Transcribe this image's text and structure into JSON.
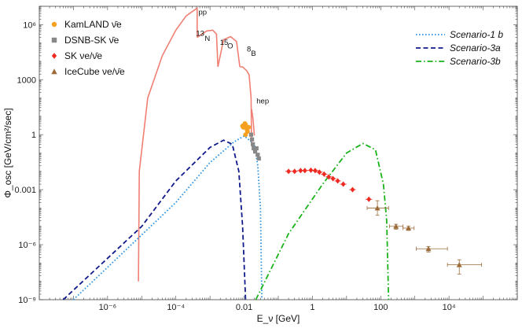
{
  "chart_data": {
    "type": "line",
    "xlabel": "E_ν [GeV]",
    "ylabel": "Φ_osc [GeV/cm²/sec]",
    "x_scale": "log",
    "y_scale": "log",
    "xlim": [
      1e-08,
      1000000.0
    ],
    "ylim": [
      1e-09,
      10000000.0
    ],
    "x_ticks": [
      {
        "value": 1e-06,
        "label": "10⁻⁶"
      },
      {
        "value": 0.0001,
        "label": "10⁻⁴"
      },
      {
        "value": 0.01,
        "label": "0.01"
      },
      {
        "value": 1,
        "label": "1"
      },
      {
        "value": 100,
        "label": "100"
      },
      {
        "value": 10000.0,
        "label": "10⁴"
      }
    ],
    "y_ticks": [
      {
        "value": 1e-09,
        "label": "10⁻⁹"
      },
      {
        "value": 1e-06,
        "label": "10⁻⁶"
      },
      {
        "value": 0.001,
        "label": "0.001"
      },
      {
        "value": 1,
        "label": "1"
      },
      {
        "value": 1000,
        "label": "1000"
      },
      {
        "value": 1000000.0,
        "label": "10⁶"
      }
    ],
    "solar_bands": [
      {
        "label": "pp",
        "color": "#f07f73",
        "points": [
          [
            8e-06,
            1e-08
          ],
          [
            8.5e-06,
            0.01
          ],
          [
            1.5e-05,
            100
          ],
          [
            4e-05,
            20000
          ],
          [
            0.0001,
            500000
          ],
          [
            0.0002,
            3000000
          ],
          [
            0.00042,
            8000000
          ],
          [
            0.00042,
            200000
          ]
        ]
      },
      {
        "label": "¹³N",
        "color": "#f07f73",
        "points": [
          [
            0.00042,
            200000
          ],
          [
            0.0008,
            450000
          ],
          [
            0.0012,
            500000
          ],
          [
            0.00155,
            300000
          ],
          [
            0.0017,
            5000
          ]
        ]
      },
      {
        "label": "¹⁵O",
        "color": "#f07f73",
        "points": [
          [
            0.0017,
            5000
          ],
          [
            0.0025,
            150000
          ],
          [
            0.004,
            220000
          ],
          [
            0.006,
            120000
          ],
          [
            0.0075,
            5000
          ]
        ]
      },
      {
        "label": "⁸B",
        "color": "#f07f73",
        "points": [
          [
            0.0075,
            5000
          ],
          [
            0.009,
            5000
          ],
          [
            0.012,
            3000
          ],
          [
            0.014,
            1800
          ],
          [
            0.016,
            100
          ],
          [
            0.0165,
            0.3
          ]
        ]
      },
      {
        "label": "hep",
        "color": "#f07f73",
        "points": [
          [
            0.0165,
            25
          ],
          [
            0.018,
            8
          ],
          [
            0.02,
            0.9
          ]
        ]
      }
    ],
    "series": [
      {
        "name": "Scenario-1 b",
        "color": "#2b93e3",
        "dash": "dotted",
        "points": [
          [
            1e-07,
            1e-09
          ],
          [
            0.0001,
            0.0002
          ],
          [
            0.001,
            0.03
          ],
          [
            0.005,
            0.4
          ],
          [
            0.01,
            0.85
          ],
          [
            0.02,
            0.3
          ],
          [
            0.025,
            0.02
          ],
          [
            0.03,
            0.0001
          ],
          [
            0.033,
            1e-09
          ]
        ]
      },
      {
        "name": "Scenario-3a",
        "color": "#101a8a",
        "dash": "dashed",
        "points": [
          [
            5e-08,
            1e-09
          ],
          [
            1e-05,
            1e-05
          ],
          [
            0.0001,
            0.003
          ],
          [
            0.001,
            0.2
          ],
          [
            0.0025,
            0.5
          ],
          [
            0.0045,
            0.3
          ],
          [
            0.007,
            0.01
          ],
          [
            0.009,
            1e-05
          ],
          [
            0.011,
            1e-09
          ]
        ]
      },
      {
        "name": "Scenario-3b",
        "color": "#1bb31b",
        "dash": "dashdot",
        "points": [
          [
            0.022,
            1e-09
          ],
          [
            0.2,
            4e-06
          ],
          [
            2,
            0.002
          ],
          [
            10,
            0.1
          ],
          [
            30,
            0.33
          ],
          [
            70,
            0.15
          ],
          [
            120,
            0.002
          ],
          [
            150,
            2e-05
          ],
          [
            170,
            1e-09
          ]
        ]
      }
    ],
    "data_sets": [
      {
        "name": "KamLAND ν̄e",
        "color": "#f5a01f",
        "marker": "circle",
        "points": [
          [
            0.009,
            3
          ],
          [
            0.0095,
            2.5
          ],
          [
            0.0105,
            4
          ],
          [
            0.011,
            3.5
          ],
          [
            0.012,
            2
          ],
          [
            0.0125,
            1.5
          ],
          [
            0.0135,
            2.5
          ],
          [
            0.011,
            1
          ]
        ]
      },
      {
        "name": "DSNB-SK ν̄e",
        "color": "#888888",
        "marker": "square",
        "points": [
          [
            0.016,
            1
          ],
          [
            0.017,
            0.55
          ],
          [
            0.018,
            0.3
          ],
          [
            0.019,
            0.18
          ],
          [
            0.021,
            0.12
          ],
          [
            0.023,
            0.18
          ],
          [
            0.025,
            0.08
          ],
          [
            0.027,
            0.05
          ]
        ]
      },
      {
        "name": "SK νe/ν̄e",
        "color": "#ee2a23",
        "marker": "diamond",
        "points": [
          [
            0.2,
            0.01
          ],
          [
            0.3,
            0.01
          ],
          [
            0.45,
            0.011
          ],
          [
            0.6,
            0.011
          ],
          [
            0.9,
            0.0115
          ],
          [
            1.2,
            0.011
          ],
          [
            1.6,
            0.009
          ],
          [
            2.2,
            0.007
          ],
          [
            3,
            0.005
          ],
          [
            4,
            0.004
          ],
          [
            5.5,
            0.003
          ],
          [
            8,
            0.002
          ],
          [
            15,
            0.001
          ],
          [
            45,
            0.0003
          ]
        ],
        "xerr_frac": 1.25
      },
      {
        "name": "IceCube νe/ν̄e",
        "color": "#9b6b3a",
        "marker": "triangle",
        "points": [
          [
            80,
            0.0001,
            4e-05,
            0.00025,
            40,
            170
          ],
          [
            280,
            1e-05,
            7e-06,
            1.3e-05,
            180,
            450
          ],
          [
            650,
            8e-06,
            6e-06,
            1e-05,
            450,
            950
          ],
          [
            2500,
            6e-07,
            4e-07,
            8e-07,
            1100,
            9000
          ],
          [
            20000,
            8e-08,
            2.5e-08,
            1.5e-07,
            9000,
            90000
          ]
        ]
      }
    ],
    "source_labels": [
      {
        "text": "pp",
        "x": 0.00046,
        "y": 3500000
      },
      {
        "text": "13",
        "sup": true,
        "x": 0.00039,
        "y": 250000
      },
      {
        "text": "N",
        "x": 0.0007,
        "y": 130000
      },
      {
        "text": "15",
        "sup": true,
        "x": 0.00195,
        "y": 80000
      },
      {
        "text": "O",
        "x": 0.0032,
        "y": 50000
      },
      {
        "text": "8",
        "sup": true,
        "x": 0.012,
        "y": 35000
      },
      {
        "text": "B",
        "x": 0.016,
        "y": 20000
      },
      {
        "text": "hep",
        "x": 0.023,
        "y": 50
      }
    ],
    "legend_left": [
      {
        "label": "KamLAND ν̄e",
        "marker": "circle",
        "color": "#f5a01f"
      },
      {
        "label": "DSNB-SK ν̄e",
        "marker": "square",
        "color": "#888888"
      },
      {
        "label": "SK νe/ν̄e",
        "marker": "diamond",
        "color": "#ee2a23"
      },
      {
        "label": "IceCube νe/ν̄e",
        "marker": "triangle",
        "color": "#9b6b3a"
      }
    ],
    "legend_right": [
      {
        "label": "Scenario-1 b",
        "color": "#2b93e3",
        "dash": "dotted"
      },
      {
        "label": "Scenario-3a",
        "color": "#101a8a",
        "dash": "dashed"
      },
      {
        "label": "Scenario-3b",
        "color": "#1bb31b",
        "dash": "dashdot"
      }
    ]
  }
}
